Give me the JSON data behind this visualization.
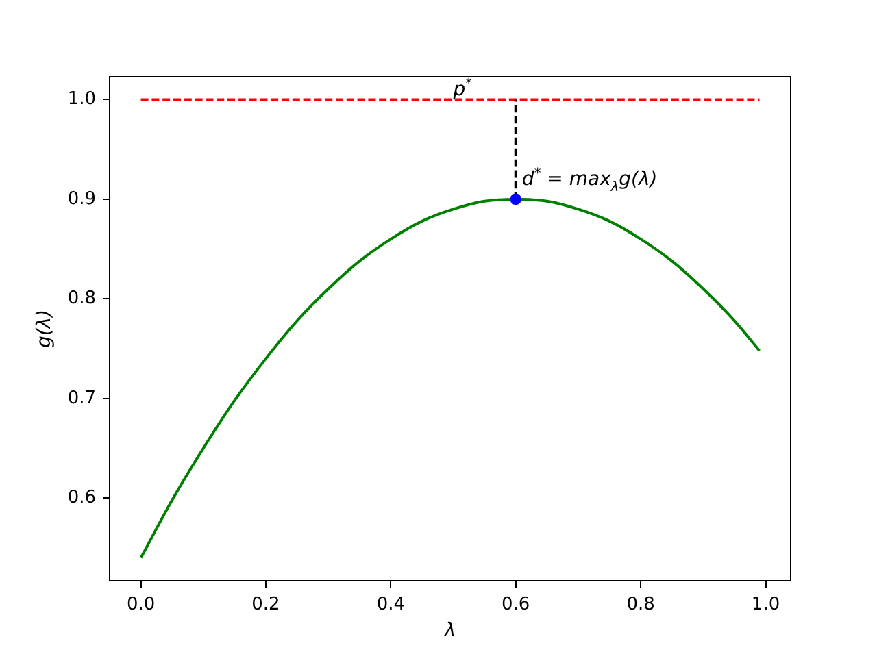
{
  "chart_data": {
    "type": "line",
    "xlabel": "λ",
    "ylabel": "g(λ)",
    "xlim": [
      -0.05,
      1.04
    ],
    "ylim": [
      0.517,
      1.023
    ],
    "xticks": [
      {
        "value": 0,
        "label": "0.0"
      },
      0.2,
      0.4,
      0.6,
      0.8,
      {
        "value": 1,
        "label": "1.0"
      }
    ],
    "yticks": [
      0.6,
      0.7,
      0.8,
      0.9,
      {
        "value": 1,
        "label": "1.0"
      }
    ],
    "series": [
      {
        "type": "line",
        "color": "#008000",
        "line_style": "solid",
        "marker": "none",
        "x": [
          0,
          0.05,
          0.1,
          0.15,
          0.2,
          0.25,
          0.3,
          0.35,
          0.4,
          0.45,
          0.5,
          0.55,
          0.6,
          0.65,
          0.7,
          0.75,
          0.8,
          0.85,
          0.9,
          0.95,
          0.99
        ],
        "values": [
          0.54,
          0.598,
          0.65,
          0.698,
          0.74,
          0.778,
          0.81,
          0.838,
          0.86,
          0.878,
          0.89,
          0.898,
          0.9,
          0.898,
          0.89,
          0.878,
          0.86,
          0.838,
          0.81,
          0.778,
          0.748
        ]
      },
      {
        "type": "line",
        "color": "#ff0000",
        "line_style": "dashed",
        "marker": "none",
        "x": [
          0,
          0.99
        ],
        "values": [
          1,
          1
        ]
      },
      {
        "type": "line",
        "color": "#000000",
        "line_style": "dashed",
        "marker": "none",
        "x": [
          0.6,
          0.6
        ],
        "values": [
          0.9,
          1
        ]
      },
      {
        "type": "scatter",
        "color": "#0000ff",
        "marker": "circle",
        "x": [
          0.6
        ],
        "values": [
          0.9
        ]
      }
    ],
    "annotations": [
      {
        "text": "p$^{*}$",
        "x": 0.5,
        "y": 1
      },
      {
        "text": "d$^{*}$ = max$_{λ}$g(λ)",
        "x": 0.61,
        "y": 0.91
      }
    ]
  }
}
